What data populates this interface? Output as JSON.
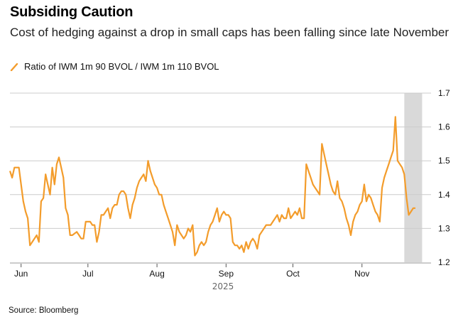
{
  "header": {
    "title": "Subsiding Caution",
    "subtitle": "Cost of hedging against a drop in small caps has been falling since late November"
  },
  "footer": {
    "source": "Source: Bloomberg"
  },
  "colors": {
    "line": "#F39C2B",
    "shade": "#D9D9D9",
    "grid": "#CCCCCC",
    "axis": "#BBBBBB"
  },
  "chart_data": {
    "type": "line",
    "title": "Subsiding Caution",
    "xlabel": "2025",
    "ylabel": "",
    "ylim": [
      1.2,
      1.7
    ],
    "y_ticks": [
      "1.2",
      "1.3",
      "1.4",
      "1.5",
      "1.6",
      "1.7"
    ],
    "x_ticks": [
      "Jun",
      "Jul",
      "Aug",
      "Sep",
      "Oct",
      "Nov"
    ],
    "x_tick_days": [
      5,
      35,
      66,
      97,
      127,
      158
    ],
    "xlim_days": [
      0,
      189
    ],
    "grid": true,
    "y_axis_side": "right",
    "legend": {
      "position": "top-left",
      "entries": [
        "Ratio of IWM 1m 90 BVOL / IWM 1m 110 BVOL"
      ]
    },
    "shaded_region_days": [
      177,
      185
    ],
    "series": [
      {
        "name": "Ratio of IWM 1m 90 BVOL / IWM 1m 110 BVOL",
        "x_days": [
          0,
          1,
          2,
          3,
          4,
          6,
          7,
          8,
          9,
          10,
          11,
          12,
          13,
          14,
          15,
          16,
          17,
          18,
          19,
          20,
          21,
          22,
          23,
          24,
          25,
          26,
          27,
          28,
          29,
          30,
          31,
          32,
          33,
          34,
          35,
          36,
          37,
          38,
          39,
          40,
          41,
          42,
          43,
          44,
          45,
          46,
          47,
          48,
          49,
          50,
          51,
          52,
          53,
          54,
          55,
          56,
          57,
          58,
          59,
          60,
          61,
          62,
          63,
          64,
          65,
          66,
          67,
          68,
          69,
          70,
          71,
          72,
          73,
          74,
          75,
          76,
          77,
          78,
          79,
          80,
          81,
          82,
          83,
          84,
          85,
          86,
          87,
          88,
          89,
          90,
          91,
          92,
          93,
          94,
          95,
          96,
          97,
          98,
          99,
          100,
          101,
          102,
          103,
          104,
          105,
          106,
          107,
          108,
          109,
          110,
          111,
          112,
          113,
          114,
          115,
          116,
          117,
          118,
          119,
          120,
          121,
          122,
          123,
          124,
          125,
          126,
          127,
          128,
          129,
          130,
          131,
          132,
          133,
          134,
          135,
          136,
          137,
          138,
          139,
          140,
          141,
          142,
          143,
          144,
          145,
          146,
          147,
          148,
          149,
          150,
          151,
          152,
          153,
          154,
          155,
          156,
          157,
          158,
          159,
          160,
          161,
          162,
          163,
          164,
          165,
          166,
          167,
          168,
          169,
          170,
          171,
          172,
          173,
          174,
          175,
          176,
          177,
          178,
          179,
          180,
          181,
          182,
          183,
          184,
          185,
          186,
          187,
          188
        ],
        "values": [
          1.47,
          1.45,
          1.48,
          1.48,
          1.48,
          1.38,
          1.35,
          1.33,
          1.25,
          1.26,
          1.27,
          1.28,
          1.26,
          1.38,
          1.39,
          1.46,
          1.43,
          1.4,
          1.48,
          1.43,
          1.49,
          1.51,
          1.48,
          1.45,
          1.36,
          1.34,
          1.28,
          1.28,
          1.285,
          1.29,
          1.28,
          1.27,
          1.27,
          1.32,
          1.32,
          1.32,
          1.31,
          1.31,
          1.26,
          1.29,
          1.34,
          1.34,
          1.35,
          1.36,
          1.33,
          1.36,
          1.37,
          1.37,
          1.4,
          1.41,
          1.41,
          1.4,
          1.36,
          1.33,
          1.37,
          1.39,
          1.42,
          1.44,
          1.45,
          1.46,
          1.44,
          1.5,
          1.47,
          1.45,
          1.43,
          1.42,
          1.4,
          1.4,
          1.37,
          1.35,
          1.33,
          1.31,
          1.29,
          1.25,
          1.31,
          1.29,
          1.28,
          1.27,
          1.28,
          1.3,
          1.29,
          1.31,
          1.22,
          1.23,
          1.25,
          1.26,
          1.25,
          1.26,
          1.29,
          1.31,
          1.32,
          1.34,
          1.36,
          1.32,
          1.34,
          1.35,
          1.34,
          1.34,
          1.33,
          1.26,
          1.25,
          1.25,
          1.24,
          1.25,
          1.23,
          1.26,
          1.24,
          1.26,
          1.27,
          1.26,
          1.24,
          1.28,
          1.29,
          1.3,
          1.31,
          1.31,
          1.31,
          1.32,
          1.33,
          1.34,
          1.32,
          1.34,
          1.33,
          1.33,
          1.36,
          1.33,
          1.34,
          1.35,
          1.34,
          1.36,
          1.33,
          1.33,
          1.49,
          1.47,
          1.45,
          1.43,
          1.42,
          1.41,
          1.4,
          1.55,
          1.52,
          1.49,
          1.46,
          1.43,
          1.41,
          1.4,
          1.44,
          1.39,
          1.38,
          1.36,
          1.33,
          1.31,
          1.28,
          1.32,
          1.34,
          1.35,
          1.37,
          1.38,
          1.43,
          1.38,
          1.4,
          1.39,
          1.37,
          1.35,
          1.34,
          1.32,
          1.42,
          1.45,
          1.47,
          1.49,
          1.51,
          1.53,
          1.63,
          1.5,
          1.49,
          1.48,
          1.46,
          1.39,
          1.34,
          1.35,
          1.36,
          1.36
        ]
      }
    ]
  }
}
